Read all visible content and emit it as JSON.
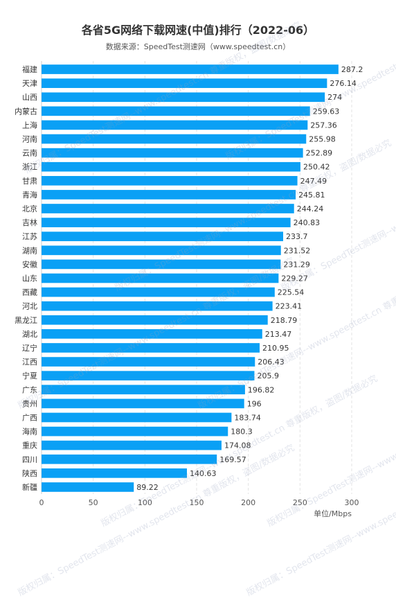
{
  "chart_data": {
    "type": "bar",
    "orientation": "horizontal",
    "title": "各省5G网络下载网速(中值)排行（2022-06）",
    "subtitle": "数据来源：SpeedTest测速网（www.speedtest.cn）",
    "xlabel": "单位/Mbps",
    "xlim": [
      0,
      300
    ],
    "xticks": [
      0,
      50,
      100,
      150,
      200,
      250,
      300
    ],
    "grid": true,
    "bar_color": "#0aa0f5",
    "categories": [
      "福建",
      "天津",
      "山西",
      "内蒙古",
      "上海",
      "河南",
      "云南",
      "浙江",
      "甘肃",
      "青海",
      "北京",
      "吉林",
      "江苏",
      "湖南",
      "安徽",
      "山东",
      "西藏",
      "河北",
      "黑龙江",
      "湖北",
      "辽宁",
      "江西",
      "宁夏",
      "广东",
      "贵州",
      "广西",
      "海南",
      "重庆",
      "四川",
      "陕西",
      "新疆"
    ],
    "values": [
      287.2,
      276.14,
      274,
      259.63,
      257.36,
      255.98,
      252.89,
      250.42,
      247.49,
      245.81,
      244.24,
      240.83,
      233.7,
      231.52,
      231.29,
      229.27,
      225.54,
      223.41,
      218.79,
      213.47,
      210.95,
      206.43,
      205.9,
      196.82,
      196,
      183.74,
      180.3,
      174.08,
      169.57,
      140.63,
      89.22
    ],
    "value_labels": [
      "287.2",
      "276.14",
      "274",
      "259.63",
      "257.36",
      "255.98",
      "252.89",
      "250.42",
      "247.49",
      "245.81",
      "244.24",
      "240.83",
      "233.7",
      "231.52",
      "231.29",
      "229.27",
      "225.54",
      "223.41",
      "218.79",
      "213.47",
      "210.95",
      "206.43",
      "205.9",
      "196.82",
      "196",
      "183.74",
      "180.3",
      "174.08",
      "169.57",
      "140.63",
      "89.22"
    ]
  },
  "watermark_text": "版权归属：SpeedTest测速网--www.speedtest.cn 尊重版权，盗图/数据必究"
}
